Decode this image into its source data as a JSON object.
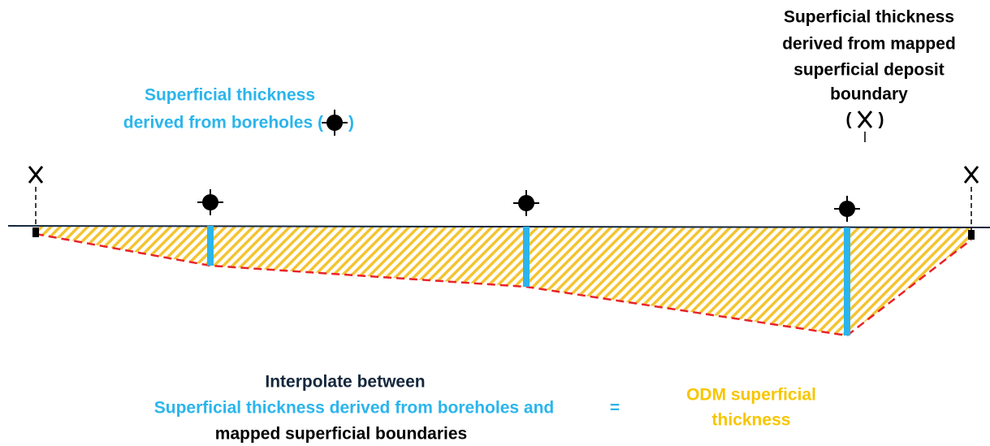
{
  "borehole_label": {
    "lines": [
      "Superficial thickness",
      "derived from boreholes ("
    ],
    "close": ")"
  },
  "boundary_label": {
    "lines": [
      "Superficial thickness",
      "derived from mapped",
      "superficial deposit",
      "boundary"
    ],
    "open": "(",
    "close": ")"
  },
  "equation": {
    "lines": [
      "Interpolate between",
      "Superficial thickness derived from boreholes and",
      "mapped superficial boundaries"
    ],
    "equals": "=",
    "result": [
      "ODM superficial",
      "thickness"
    ]
  }
}
